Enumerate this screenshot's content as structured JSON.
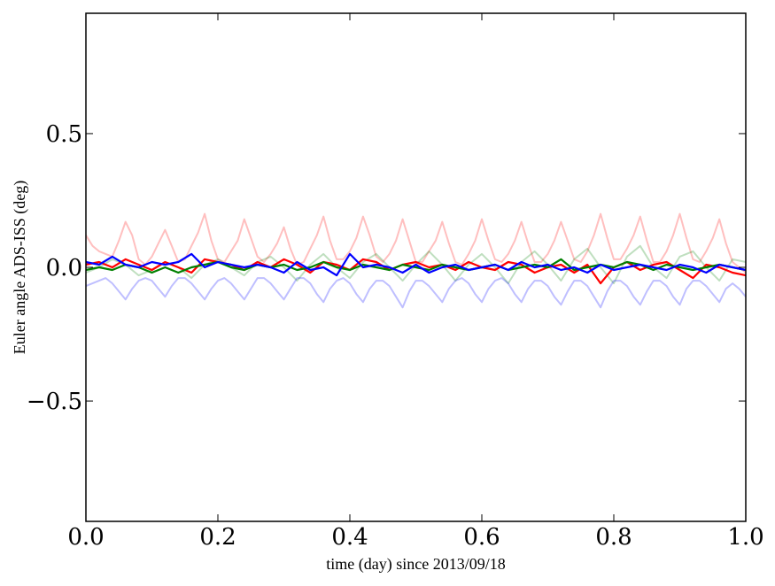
{
  "chart_data": {
    "type": "line",
    "title": "",
    "xlabel": "time (day) since 2013/09/18",
    "ylabel": "Euler angle ADS-ISS (deg)",
    "xlim": [
      0.0,
      1.0
    ],
    "ylim": [
      -0.95,
      0.95
    ],
    "grid": false,
    "x_ticks": [
      0.0,
      0.2,
      0.4,
      0.6,
      0.8,
      1.0
    ],
    "x_tick_labels": [
      "0.0",
      "0.2",
      "0.4",
      "0.6",
      "0.8",
      "1.0"
    ],
    "y_ticks": [
      -0.5,
      0.0,
      0.5
    ],
    "y_tick_labels": [
      "−0.5",
      "0.0",
      "0.5"
    ],
    "series": [
      {
        "color": "#ff0000",
        "alpha": 0.25,
        "style": "faint",
        "x": [
          0.0,
          0.01,
          0.02,
          0.03,
          0.04,
          0.05,
          0.06,
          0.07,
          0.08,
          0.09,
          0.1,
          0.11,
          0.12,
          0.13,
          0.14,
          0.15,
          0.16,
          0.17,
          0.18,
          0.19,
          0.2,
          0.21,
          0.22,
          0.23,
          0.24,
          0.25,
          0.26,
          0.27,
          0.28,
          0.29,
          0.3,
          0.31,
          0.32,
          0.33,
          0.34,
          0.35,
          0.36,
          0.37,
          0.38,
          0.39,
          0.4,
          0.41,
          0.42,
          0.43,
          0.44,
          0.45,
          0.46,
          0.47,
          0.48,
          0.49,
          0.5,
          0.51,
          0.52,
          0.53,
          0.54,
          0.55,
          0.56,
          0.57,
          0.58,
          0.59,
          0.6,
          0.61,
          0.62,
          0.63,
          0.64,
          0.65,
          0.66,
          0.67,
          0.68,
          0.69,
          0.7,
          0.71,
          0.72,
          0.73,
          0.74,
          0.75,
          0.76,
          0.77,
          0.78,
          0.79,
          0.8,
          0.81,
          0.82,
          0.83,
          0.84,
          0.85,
          0.86,
          0.87,
          0.88,
          0.89,
          0.9,
          0.91,
          0.92,
          0.93,
          0.94,
          0.95,
          0.96,
          0.97,
          0.98,
          0.99,
          1.0
        ],
        "y": [
          0.12,
          0.08,
          0.06,
          0.05,
          0.04,
          0.1,
          0.17,
          0.12,
          0.03,
          0.01,
          0.04,
          0.09,
          0.14,
          0.08,
          0.02,
          0.03,
          0.08,
          0.13,
          0.2,
          0.1,
          0.03,
          0.02,
          0.06,
          0.1,
          0.18,
          0.11,
          0.04,
          0.02,
          0.05,
          0.09,
          0.15,
          0.07,
          0.01,
          0.02,
          0.07,
          0.12,
          0.19,
          0.1,
          0.03,
          0.03,
          0.06,
          0.11,
          0.19,
          0.12,
          0.04,
          0.02,
          0.05,
          0.1,
          0.18,
          0.1,
          0.02,
          0.02,
          0.06,
          0.1,
          0.17,
          0.09,
          0.02,
          0.01,
          0.05,
          0.1,
          0.18,
          0.1,
          0.03,
          0.02,
          0.05,
          0.1,
          0.17,
          0.09,
          0.02,
          0.02,
          0.05,
          0.1,
          0.17,
          0.1,
          0.03,
          0.02,
          0.06,
          0.12,
          0.2,
          0.11,
          0.03,
          0.03,
          0.07,
          0.12,
          0.19,
          0.1,
          0.02,
          0.02,
          0.06,
          0.12,
          0.2,
          0.11,
          0.03,
          0.02,
          0.06,
          0.11,
          0.18,
          0.09,
          0.02,
          0.0,
          -0.02
        ]
      },
      {
        "color": "#008000",
        "alpha": 0.25,
        "style": "faint",
        "x": [
          0.0,
          0.02,
          0.04,
          0.06,
          0.08,
          0.1,
          0.12,
          0.14,
          0.16,
          0.18,
          0.2,
          0.22,
          0.24,
          0.26,
          0.28,
          0.3,
          0.32,
          0.34,
          0.36,
          0.38,
          0.4,
          0.42,
          0.44,
          0.46,
          0.48,
          0.5,
          0.52,
          0.54,
          0.56,
          0.58,
          0.6,
          0.62,
          0.64,
          0.66,
          0.68,
          0.7,
          0.72,
          0.74,
          0.76,
          0.78,
          0.8,
          0.82,
          0.84,
          0.86,
          0.88,
          0.9,
          0.92,
          0.94,
          0.96,
          0.98,
          1.0
        ],
        "y": [
          -0.02,
          0.0,
          0.03,
          0.01,
          -0.03,
          -0.01,
          0.02,
          0.0,
          -0.04,
          0.01,
          0.03,
          0.0,
          -0.03,
          0.02,
          0.04,
          0.0,
          -0.05,
          0.01,
          0.05,
          0.0,
          -0.04,
          0.02,
          0.05,
          0.0,
          -0.05,
          0.01,
          0.06,
          0.01,
          -0.05,
          0.01,
          0.05,
          0.0,
          -0.06,
          0.02,
          0.06,
          0.01,
          -0.05,
          0.03,
          0.07,
          0.0,
          -0.06,
          0.04,
          0.08,
          0.0,
          -0.04,
          0.04,
          0.06,
          0.0,
          -0.05,
          0.03,
          0.02
        ]
      },
      {
        "color": "#0000ff",
        "alpha": 0.25,
        "style": "faint",
        "x": [
          0.0,
          0.01,
          0.02,
          0.03,
          0.04,
          0.05,
          0.06,
          0.07,
          0.08,
          0.09,
          0.1,
          0.11,
          0.12,
          0.13,
          0.14,
          0.15,
          0.16,
          0.17,
          0.18,
          0.19,
          0.2,
          0.21,
          0.22,
          0.23,
          0.24,
          0.25,
          0.26,
          0.27,
          0.28,
          0.29,
          0.3,
          0.31,
          0.32,
          0.33,
          0.34,
          0.35,
          0.36,
          0.37,
          0.38,
          0.39,
          0.4,
          0.41,
          0.42,
          0.43,
          0.44,
          0.45,
          0.46,
          0.47,
          0.48,
          0.49,
          0.5,
          0.51,
          0.52,
          0.53,
          0.54,
          0.55,
          0.56,
          0.57,
          0.58,
          0.59,
          0.6,
          0.61,
          0.62,
          0.63,
          0.64,
          0.65,
          0.66,
          0.67,
          0.68,
          0.69,
          0.7,
          0.71,
          0.72,
          0.73,
          0.74,
          0.75,
          0.76,
          0.77,
          0.78,
          0.79,
          0.8,
          0.81,
          0.82,
          0.83,
          0.84,
          0.85,
          0.86,
          0.87,
          0.88,
          0.89,
          0.9,
          0.91,
          0.92,
          0.93,
          0.94,
          0.95,
          0.96,
          0.97,
          0.98,
          0.99,
          1.0
        ],
        "y": [
          -0.07,
          -0.06,
          -0.05,
          -0.04,
          -0.06,
          -0.09,
          -0.12,
          -0.08,
          -0.05,
          -0.04,
          -0.05,
          -0.08,
          -0.11,
          -0.07,
          -0.04,
          -0.04,
          -0.06,
          -0.09,
          -0.12,
          -0.08,
          -0.05,
          -0.04,
          -0.06,
          -0.09,
          -0.12,
          -0.08,
          -0.04,
          -0.04,
          -0.06,
          -0.09,
          -0.12,
          -0.08,
          -0.04,
          -0.04,
          -0.06,
          -0.1,
          -0.13,
          -0.08,
          -0.05,
          -0.04,
          -0.06,
          -0.1,
          -0.13,
          -0.08,
          -0.05,
          -0.05,
          -0.07,
          -0.11,
          -0.15,
          -0.09,
          -0.05,
          -0.05,
          -0.07,
          -0.1,
          -0.13,
          -0.08,
          -0.05,
          -0.04,
          -0.06,
          -0.1,
          -0.13,
          -0.08,
          -0.05,
          -0.04,
          -0.06,
          -0.1,
          -0.13,
          -0.08,
          -0.05,
          -0.05,
          -0.07,
          -0.11,
          -0.14,
          -0.09,
          -0.05,
          -0.05,
          -0.07,
          -0.11,
          -0.15,
          -0.09,
          -0.05,
          -0.05,
          -0.07,
          -0.11,
          -0.14,
          -0.09,
          -0.05,
          -0.05,
          -0.07,
          -0.11,
          -0.14,
          -0.08,
          -0.05,
          -0.05,
          -0.07,
          -0.1,
          -0.13,
          -0.08,
          -0.06,
          -0.08,
          -0.11
        ]
      },
      {
        "color": "#ff0000",
        "alpha": 1.0,
        "style": "solid",
        "x": [
          0.0,
          0.02,
          0.04,
          0.06,
          0.08,
          0.1,
          0.12,
          0.14,
          0.16,
          0.18,
          0.2,
          0.22,
          0.24,
          0.26,
          0.28,
          0.3,
          0.32,
          0.34,
          0.36,
          0.38,
          0.4,
          0.42,
          0.44,
          0.46,
          0.48,
          0.5,
          0.52,
          0.54,
          0.56,
          0.58,
          0.6,
          0.62,
          0.64,
          0.66,
          0.68,
          0.7,
          0.72,
          0.74,
          0.76,
          0.78,
          0.8,
          0.82,
          0.84,
          0.86,
          0.88,
          0.9,
          0.92,
          0.94,
          0.96,
          0.98,
          1.0
        ],
        "y": [
          0.01,
          0.02,
          0.0,
          0.03,
          0.01,
          -0.01,
          0.02,
          0.0,
          -0.02,
          0.03,
          0.02,
          0.01,
          -0.01,
          0.02,
          0.0,
          0.03,
          0.01,
          -0.02,
          0.02,
          0.01,
          -0.01,
          0.03,
          0.02,
          -0.01,
          0.01,
          0.02,
          0.0,
          0.01,
          -0.01,
          0.02,
          0.0,
          -0.01,
          0.02,
          0.01,
          -0.02,
          0.0,
          0.01,
          -0.02,
          0.01,
          -0.06,
          0.0,
          0.02,
          -0.01,
          0.01,
          0.02,
          -0.01,
          -0.04,
          0.01,
          0.0,
          -0.02,
          -0.03
        ]
      },
      {
        "color": "#008000",
        "alpha": 1.0,
        "style": "solid",
        "x": [
          0.0,
          0.02,
          0.04,
          0.06,
          0.08,
          0.1,
          0.12,
          0.14,
          0.16,
          0.18,
          0.2,
          0.22,
          0.24,
          0.26,
          0.28,
          0.3,
          0.32,
          0.34,
          0.36,
          0.38,
          0.4,
          0.42,
          0.44,
          0.46,
          0.48,
          0.5,
          0.52,
          0.54,
          0.56,
          0.58,
          0.6,
          0.62,
          0.64,
          0.66,
          0.68,
          0.7,
          0.72,
          0.74,
          0.76,
          0.78,
          0.8,
          0.82,
          0.84,
          0.86,
          0.88,
          0.9,
          0.92,
          0.94,
          0.96,
          0.98,
          1.0
        ],
        "y": [
          -0.01,
          0.0,
          -0.01,
          0.01,
          0.0,
          -0.02,
          0.0,
          -0.02,
          0.0,
          0.01,
          0.02,
          0.0,
          -0.01,
          0.01,
          0.0,
          0.01,
          -0.01,
          0.0,
          0.02,
          0.0,
          -0.01,
          0.01,
          0.0,
          -0.01,
          0.01,
          0.0,
          -0.01,
          0.01,
          0.0,
          -0.01,
          0.0,
          0.01,
          -0.01,
          0.0,
          0.01,
          0.0,
          0.03,
          -0.01,
          0.0,
          0.01,
          0.0,
          0.02,
          0.01,
          -0.01,
          0.01,
          0.0,
          -0.01,
          0.0,
          0.01,
          0.0,
          -0.01
        ]
      },
      {
        "color": "#0000ff",
        "alpha": 1.0,
        "style": "solid",
        "x": [
          0.0,
          0.02,
          0.04,
          0.06,
          0.08,
          0.1,
          0.12,
          0.14,
          0.16,
          0.18,
          0.2,
          0.22,
          0.24,
          0.26,
          0.28,
          0.3,
          0.32,
          0.34,
          0.36,
          0.38,
          0.4,
          0.42,
          0.44,
          0.46,
          0.48,
          0.5,
          0.52,
          0.54,
          0.56,
          0.58,
          0.6,
          0.62,
          0.64,
          0.66,
          0.68,
          0.7,
          0.72,
          0.74,
          0.76,
          0.78,
          0.8,
          0.82,
          0.84,
          0.86,
          0.88,
          0.9,
          0.92,
          0.94,
          0.96,
          0.98,
          1.0
        ],
        "y": [
          0.02,
          0.01,
          0.04,
          0.01,
          0.0,
          0.02,
          0.01,
          0.02,
          0.05,
          0.0,
          0.02,
          0.01,
          0.0,
          0.01,
          0.0,
          -0.02,
          0.02,
          -0.01,
          0.0,
          -0.03,
          0.05,
          0.0,
          0.01,
          0.0,
          -0.02,
          0.01,
          -0.02,
          0.0,
          0.01,
          -0.01,
          0.0,
          0.01,
          -0.01,
          0.02,
          0.0,
          0.01,
          -0.01,
          0.0,
          -0.02,
          0.01,
          -0.01,
          0.0,
          0.01,
          0.0,
          -0.01,
          0.01,
          0.0,
          -0.02,
          0.01,
          0.0,
          -0.01
        ]
      }
    ]
  }
}
